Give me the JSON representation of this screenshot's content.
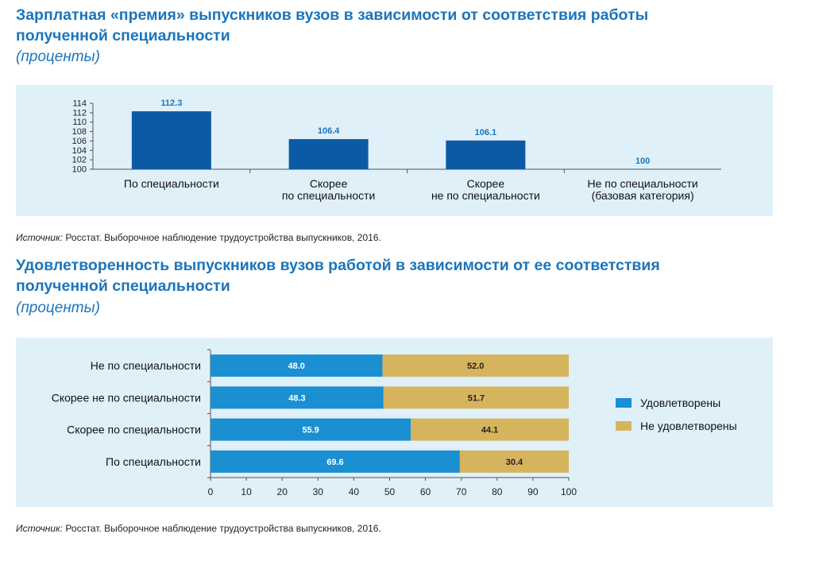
{
  "chart1": {
    "title_line1": "Зарплатная «премия» выпускников вузов в зависимости от соответствия работы",
    "title_line2": "полученной специальности",
    "subtitle": "(проценты)",
    "source_label": "Источник:",
    "source_text": "Росстат. Выборочное наблюдение трудоустройства выпускников, 2016."
  },
  "chart2": {
    "title_line1": "Удовлетворенность выпускников вузов работой в зависимости от ее соответствия",
    "title_line2": "полученной специальности",
    "subtitle": "(проценты)",
    "source_label": "Источник:",
    "source_text": "Росстат. Выборочное наблюдение трудоустройства выпускников, 2016."
  },
  "chart_data": [
    {
      "type": "bar",
      "categories": [
        [
          "По специальности"
        ],
        [
          "Скорее",
          "по специальности"
        ],
        [
          "Скорее",
          "не по специальности"
        ],
        [
          "Не по специальности",
          "(базовая категория)"
        ]
      ],
      "values": [
        112.3,
        106.4,
        106.1,
        100
      ],
      "value_labels": [
        "112.3",
        "106.4",
        "106.1",
        "100"
      ],
      "ylim": [
        100,
        114
      ],
      "yticks": [
        "100",
        "102",
        "104",
        "106",
        "108",
        "110",
        "112",
        "114"
      ],
      "colors": {
        "bar": "#0c5aa6",
        "label": "#1b75bc"
      }
    },
    {
      "type": "bar",
      "orientation": "horizontal",
      "stacked": true,
      "categories": [
        "Не по специальности",
        "Скорее не по специальности",
        "Скорее по специальности",
        "По специальности"
      ],
      "series": [
        {
          "name": "Удовлетворены",
          "values": [
            48.0,
            48.3,
            55.9,
            69.6
          ],
          "labels": [
            "48.0",
            "48.3",
            "55.9",
            "69.6"
          ],
          "color": "#1a8fd1"
        },
        {
          "name": "Не удовлетворены",
          "values": [
            52.0,
            51.7,
            44.1,
            30.4
          ],
          "labels": [
            "52.0",
            "51.7",
            "44.1",
            "30.4"
          ],
          "color": "#d6b45e"
        }
      ],
      "xlim": [
        0,
        100
      ],
      "xticks": [
        "0",
        "10",
        "20",
        "30",
        "40",
        "50",
        "60",
        "70",
        "80",
        "90",
        "100"
      ],
      "legend_position": "right"
    }
  ]
}
